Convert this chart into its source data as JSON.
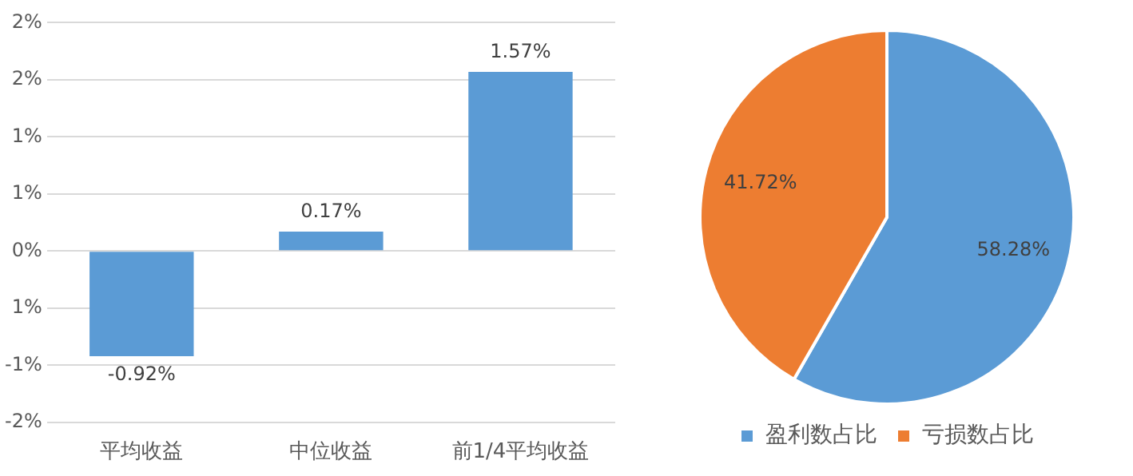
{
  "chart_data": [
    {
      "type": "bar",
      "categories": [
        "平均收益",
        "中位收益",
        "前1/4平均收益"
      ],
      "values": [
        -0.92,
        0.17,
        1.57
      ],
      "color": "#5b9bd5",
      "value_labels": [
        "-0.92%",
        "0.17%",
        "1.57%"
      ],
      "ylim": [
        -1.5,
        2.0
      ],
      "yticks": [
        {
          "value": -1.5,
          "label": "-2%"
        },
        {
          "value": -1.0,
          "label": "-1%"
        },
        {
          "value": -0.5,
          "label": "1%"
        },
        {
          "value": 0,
          "label": "0%"
        },
        {
          "value": 0.5,
          "label": "1%"
        },
        {
          "value": 1.0,
          "label": "1%"
        },
        {
          "value": 1.5,
          "label": "2%"
        },
        {
          "value": 2.0,
          "label": "2%"
        }
      ],
      "grid": "y"
    },
    {
      "type": "pie",
      "categories": [
        "盈利数占比",
        "亏损数占比"
      ],
      "values": [
        58.28,
        41.72
      ],
      "colors": [
        "#5b9bd5",
        "#ed7d31"
      ],
      "value_labels": [
        "58.28%",
        "41.72%"
      ],
      "legend": "bottom"
    }
  ]
}
